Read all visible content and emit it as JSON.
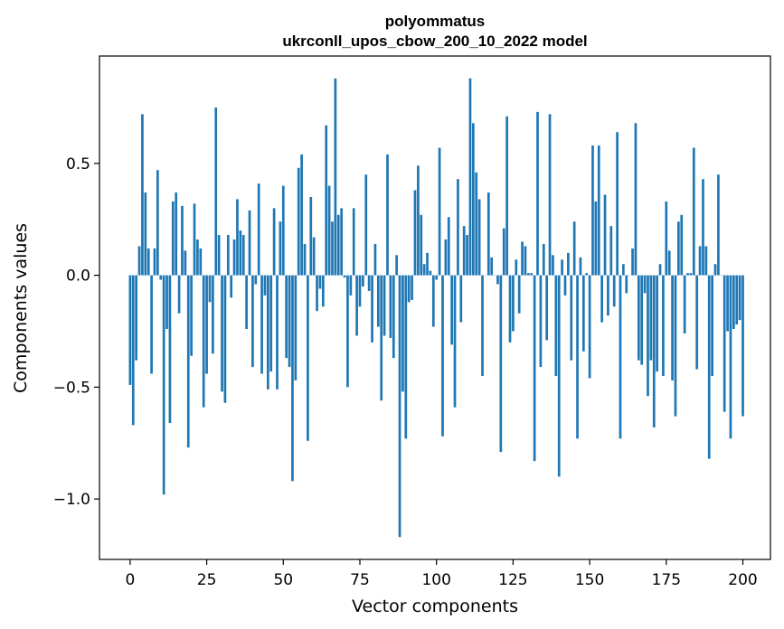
{
  "chart_data": {
    "type": "bar",
    "title_line1": "polyommatus",
    "title_line2": "ukrconll_upos_cbow_200_10_2022 model",
    "xlabel": "Vector components",
    "ylabel": "Components values",
    "xlim": [
      -10,
      209
    ],
    "ylim": [
      -1.27,
      0.98
    ],
    "xticks": [
      0,
      25,
      50,
      75,
      100,
      125,
      150,
      175,
      200
    ],
    "yticks": [
      -1.0,
      -0.5,
      0.0,
      0.5
    ],
    "ytick_labels": [
      "−1.0",
      "−0.5",
      "0.0",
      "0.5"
    ],
    "bar_color": "#1f77b4",
    "grid": false,
    "values": [
      -0.49,
      -0.67,
      -0.38,
      0.13,
      0.72,
      0.37,
      0.12,
      -0.44,
      0.12,
      0.47,
      -0.02,
      -0.98,
      -0.24,
      -0.66,
      0.33,
      0.37,
      -0.17,
      0.31,
      0.11,
      -0.77,
      -0.36,
      0.32,
      0.16,
      0.12,
      -0.59,
      -0.44,
      -0.12,
      -0.35,
      0.75,
      0.18,
      -0.52,
      -0.57,
      0.18,
      -0.1,
      0.16,
      0.34,
      0.2,
      0.18,
      -0.24,
      0.29,
      -0.41,
      -0.04,
      0.41,
      -0.44,
      -0.09,
      -0.51,
      -0.43,
      0.3,
      -0.51,
      0.24,
      0.4,
      -0.37,
      -0.41,
      -0.92,
      -0.47,
      0.48,
      0.54,
      0.14,
      -0.74,
      0.35,
      0.17,
      -0.16,
      -0.06,
      -0.14,
      0.67,
      0.4,
      0.24,
      0.88,
      0.27,
      0.3,
      -0.01,
      -0.5,
      -0.09,
      0.3,
      -0.27,
      -0.14,
      -0.05,
      0.45,
      -0.07,
      -0.3,
      0.14,
      -0.23,
      -0.56,
      -0.27,
      0.54,
      -0.28,
      -0.37,
      0.09,
      -1.17,
      -0.52,
      -0.73,
      -0.12,
      -0.11,
      0.38,
      0.49,
      0.27,
      0.05,
      0.1,
      0.02,
      -0.23,
      -0.02,
      0.57,
      -0.72,
      0.16,
      0.26,
      -0.31,
      -0.59,
      0.43,
      -0.21,
      0.22,
      0.18,
      0.88,
      0.68,
      0.46,
      0.34,
      -0.45,
      0.0,
      0.37,
      0.08,
      0.0,
      -0.04,
      -0.79,
      0.21,
      0.71,
      -0.3,
      -0.25,
      0.07,
      -0.17,
      0.15,
      0.13,
      0.01,
      0.01,
      -0.83,
      0.73,
      -0.41,
      0.14,
      -0.29,
      0.72,
      0.09,
      -0.45,
      -0.9,
      0.07,
      -0.09,
      0.1,
      -0.38,
      0.24,
      -0.73,
      0.08,
      -0.34,
      0.01,
      -0.46,
      0.58,
      0.33,
      0.58,
      -0.21,
      0.36,
      -0.18,
      0.22,
      -0.14,
      0.64,
      -0.73,
      0.05,
      -0.08,
      0.0,
      0.12,
      0.68,
      -0.38,
      -0.4,
      -0.08,
      -0.54,
      -0.38,
      -0.68,
      -0.43,
      0.05,
      -0.45,
      0.33,
      0.11,
      -0.47,
      -0.63,
      0.24,
      0.27,
      -0.26,
      0.01,
      0.01,
      0.57,
      -0.42,
      0.13,
      0.43,
      0.13,
      -0.82,
      -0.45,
      0.05,
      0.45,
      0.0,
      -0.61,
      -0.25,
      -0.73,
      -0.24,
      -0.22,
      -0.2,
      -0.63
    ]
  }
}
